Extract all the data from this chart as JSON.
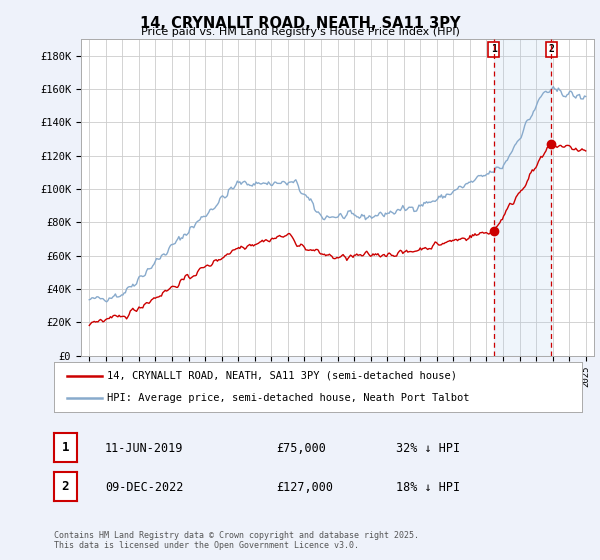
{
  "title": "14, CRYNALLT ROAD, NEATH, SA11 3PY",
  "subtitle": "Price paid vs. HM Land Registry's House Price Index (HPI)",
  "ylabel_ticks": [
    "£0",
    "£20K",
    "£40K",
    "£60K",
    "£80K",
    "£100K",
    "£120K",
    "£140K",
    "£160K",
    "£180K"
  ],
  "ytick_values": [
    0,
    20000,
    40000,
    60000,
    80000,
    100000,
    120000,
    140000,
    160000,
    180000
  ],
  "ylim": [
    0,
    190000
  ],
  "legend1": "14, CRYNALLT ROAD, NEATH, SA11 3PY (semi-detached house)",
  "legend2": "HPI: Average price, semi-detached house, Neath Port Talbot",
  "marker1_date": "11-JUN-2019",
  "marker1_price": "£75,000",
  "marker1_hpi": "32% ↓ HPI",
  "marker2_date": "09-DEC-2022",
  "marker2_price": "£127,000",
  "marker2_hpi": "18% ↓ HPI",
  "footer": "Contains HM Land Registry data © Crown copyright and database right 2025.\nThis data is licensed under the Open Government Licence v3.0.",
  "price_color": "#cc0000",
  "hpi_color": "#88aacc",
  "background_color": "#eef2fa",
  "plot_bg_color": "#ffffff",
  "grid_color": "#cccccc",
  "dashed_line_color": "#cc0000",
  "marker1_x_year": 2019.44,
  "marker2_x_year": 2022.93,
  "xlim_start": 1994.5,
  "xlim_end": 2025.5
}
